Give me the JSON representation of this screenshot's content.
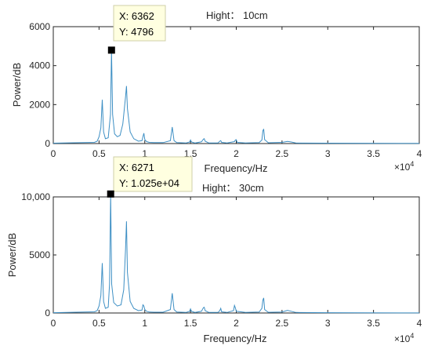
{
  "chart_data": [
    {
      "type": "line",
      "title": "Hight： 10cm",
      "xlabel": "Frequency/Hz",
      "ylabel": "Power/dB",
      "x_exponent": "×10",
      "x_exponent_power": "4",
      "xlim": [
        0,
        4
      ],
      "ylim": [
        0,
        6000
      ],
      "xticks": [
        "0",
        "0.5",
        "1",
        "1.5",
        "2",
        "2.5",
        "3",
        "3.5",
        "4"
      ],
      "yticks": [
        "0",
        "2000",
        "4000",
        "6000"
      ],
      "xtick_values": [
        0,
        0.5,
        1,
        1.5,
        2,
        2.5,
        3,
        3.5,
        4
      ],
      "ytick_values": [
        0,
        2000,
        4000,
        6000
      ],
      "color": "#3d8fc4",
      "series": [
        {
          "x": [
            0.0,
            0.45,
            0.48,
            0.5,
            0.52,
            0.535,
            0.55,
            0.57,
            0.6,
            0.625,
            0.6362,
            0.648,
            0.67,
            0.7,
            0.73,
            0.76,
            0.79,
            0.8,
            0.81,
            0.84,
            0.88,
            0.93,
            0.97,
            0.98,
            0.99,
            1.0,
            1.02,
            1.05,
            1.1,
            1.2,
            1.28,
            1.3,
            1.32,
            1.35,
            1.45,
            1.49,
            1.5,
            1.51,
            1.55,
            1.62,
            1.64,
            1.65,
            1.66,
            1.7,
            1.8,
            1.82,
            1.83,
            1.84,
            1.9,
            1.98,
            1.99,
            2.0,
            2.01,
            2.1,
            2.25,
            2.28,
            2.29,
            2.3,
            2.31,
            2.35,
            2.5,
            2.55,
            2.56,
            2.6,
            2.65,
            3.0,
            4.0
          ],
          "y": [
            20,
            60,
            120,
            350,
            800,
            2250,
            600,
            250,
            300,
            1500,
            4796,
            1500,
            500,
            350,
            420,
            1000,
            2400,
            2950,
            1800,
            600,
            250,
            120,
            150,
            350,
            530,
            200,
            100,
            60,
            50,
            50,
            150,
            850,
            150,
            50,
            30,
            80,
            180,
            80,
            30,
            90,
            220,
            250,
            120,
            30,
            30,
            120,
            150,
            60,
            30,
            100,
            180,
            200,
            60,
            30,
            50,
            180,
            650,
            750,
            200,
            40,
            60,
            100,
            110,
            80,
            30,
            20,
            10
          ]
        }
      ],
      "datatip": {
        "point": [
          0.6362,
          4796
        ],
        "x_label": "X: 6362",
        "y_label": "Y: 4796"
      }
    },
    {
      "type": "line",
      "title": "Hight： 30cm",
      "xlabel": "Frequency/Hz",
      "ylabel": "Power/dB",
      "x_exponent": "×10",
      "x_exponent_power": "4",
      "xlim": [
        0,
        4
      ],
      "ylim": [
        0,
        10000
      ],
      "xticks": [
        "0",
        "0.5",
        "1",
        "1.5",
        "2",
        "2.5",
        "3",
        "3.5",
        "4"
      ],
      "yticks": [
        "0",
        "5000",
        "10,000"
      ],
      "xtick_values": [
        0,
        0.5,
        1,
        1.5,
        2,
        2.5,
        3,
        3.5,
        4
      ],
      "ytick_values": [
        0,
        5000,
        10000
      ],
      "color": "#3d8fc4",
      "series": [
        {
          "x": [
            0.0,
            0.45,
            0.48,
            0.5,
            0.52,
            0.535,
            0.55,
            0.57,
            0.6,
            0.615,
            0.6271,
            0.638,
            0.66,
            0.7,
            0.74,
            0.77,
            0.79,
            0.8,
            0.81,
            0.84,
            0.88,
            0.93,
            0.97,
            0.98,
            0.99,
            1.0,
            1.02,
            1.05,
            1.1,
            1.2,
            1.28,
            1.3,
            1.32,
            1.35,
            1.45,
            1.49,
            1.5,
            1.51,
            1.55,
            1.62,
            1.64,
            1.65,
            1.66,
            1.7,
            1.8,
            1.82,
            1.83,
            1.84,
            1.9,
            1.97,
            1.98,
            1.99,
            2.0,
            2.1,
            2.25,
            2.28,
            2.29,
            2.3,
            2.31,
            2.35,
            2.5,
            2.55,
            2.56,
            2.6,
            2.65,
            3.0,
            4.0
          ],
          "y": [
            30,
            100,
            200,
            600,
            1500,
            4300,
            1000,
            400,
            500,
            2500,
            10250,
            2500,
            900,
            600,
            700,
            2000,
            5500,
            7900,
            3500,
            1000,
            400,
            200,
            250,
            700,
            600,
            300,
            150,
            80,
            70,
            70,
            300,
            1700,
            300,
            80,
            50,
            150,
            350,
            150,
            50,
            150,
            450,
            500,
            200,
            50,
            50,
            200,
            400,
            100,
            50,
            200,
            650,
            450,
            150,
            50,
            80,
            400,
            1100,
            1300,
            300,
            60,
            90,
            200,
            220,
            150,
            50,
            30,
            10
          ]
        }
      ],
      "datatip": {
        "point": [
          0.6271,
          10250
        ],
        "x_label": "X: 6271",
        "y_label": "Y: 1.025e+04"
      }
    }
  ]
}
